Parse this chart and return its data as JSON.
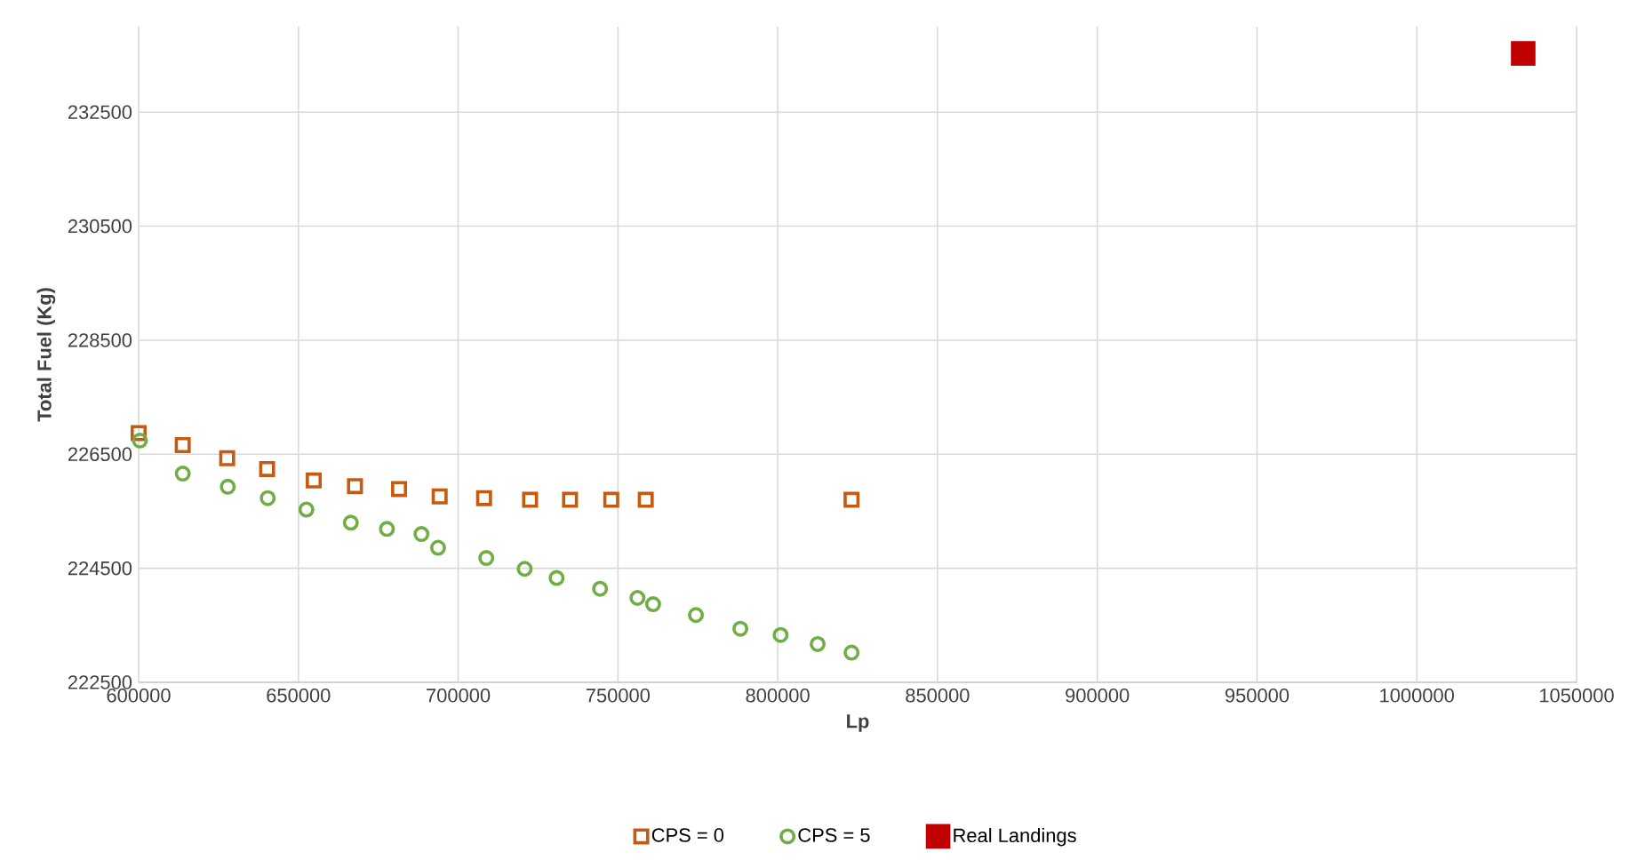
{
  "chart_data": {
    "type": "scatter",
    "xlabel": "Lp",
    "ylabel": "Total Fuel (Kg)",
    "xlim": [
      600000,
      1050000
    ],
    "xticks": [
      600000,
      650000,
      700000,
      750000,
      800000,
      850000,
      900000,
      950000,
      1000000,
      1050000
    ],
    "ylim": [
      222500,
      234000
    ],
    "yticks": [
      222500,
      224500,
      226500,
      228500,
      230500,
      232500
    ],
    "grid": true,
    "legend": "bottom",
    "series": [
      {
        "name": "CPS = 0",
        "color": "#c55a11",
        "marker": "square",
        "x": [
          600000,
          613800,
          627700,
          640200,
          654800,
          667700,
          681500,
          694200,
          708100,
          722500,
          735000,
          747900,
          758700,
          823100
        ],
        "values": [
          226870,
          226660,
          226430,
          226240,
          226040,
          225940,
          225890,
          225760,
          225730,
          225700,
          225700,
          225700,
          225700,
          225700
        ]
      },
      {
        "name": "CPS = 5",
        "color": "#70ad47",
        "marker": "circle",
        "x": [
          600400,
          613800,
          627900,
          640400,
          652500,
          666400,
          677700,
          688500,
          693700,
          708800,
          720800,
          730800,
          744400,
          756100,
          761000,
          774400,
          788300,
          800900,
          812500,
          823100
        ],
        "values": [
          226740,
          226160,
          225930,
          225730,
          225530,
          225300,
          225190,
          225100,
          224860,
          224680,
          224490,
          224330,
          224140,
          223980,
          223870,
          223680,
          223440,
          223330,
          223170,
          223020
        ]
      },
      {
        "name": "Real Landings",
        "color": "#c00000",
        "marker": "square",
        "x": [
          1033300
        ],
        "values": [
          233530
        ]
      }
    ]
  }
}
